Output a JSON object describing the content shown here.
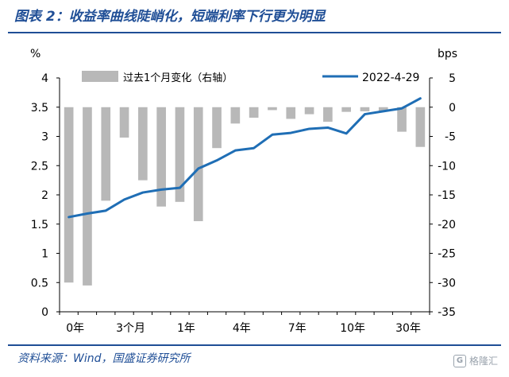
{
  "figure_title": "图表 2：收益率曲线陡峭化，短端利率下行更为明显",
  "source_note": "资料来源：Wind，国盛证券研究所",
  "watermark": "格隆汇",
  "watermark_badge": "G",
  "colors": {
    "bar": "#b8b8b8",
    "line": "#1f6eb5",
    "title": "#1f4e96"
  },
  "chart_data": {
    "type": "bar+line",
    "title": "",
    "ylabel_left": "%",
    "ylabel_right": "bps",
    "y_left_range": [
      0,
      4
    ],
    "y_left_ticks": [
      "0",
      "0.5",
      "1",
      "1.5",
      "2",
      "2.5",
      "3",
      "3.5",
      "4"
    ],
    "y_right_range": [
      -35,
      5
    ],
    "y_right_ticks": [
      "5",
      "0",
      "-5",
      "-10",
      "-15",
      "-20",
      "-25",
      "-30",
      "-35"
    ],
    "x_tick_labels": [
      "0年",
      "3个月",
      "1年",
      "4年",
      "7年",
      "10年",
      "30年"
    ],
    "x_tick_positions": [
      0,
      3,
      6,
      9,
      12,
      15,
      18
    ],
    "num_points": 20,
    "legend_placement": "top",
    "series": [
      {
        "name": "过去1个月变化（右轴）",
        "type": "bar",
        "axis": "right",
        "values": [
          -30,
          -30.5,
          -16,
          -5.2,
          -12.5,
          -17,
          -16.2,
          -19.5,
          -7,
          -2.8,
          -1.8,
          -0.5,
          -2,
          -1.2,
          -2.5,
          -0.8,
          -0.7,
          -0.7,
          -4.2,
          -6.8
        ]
      },
      {
        "name": "2022-4-29",
        "type": "line",
        "axis": "left",
        "values": [
          1.62,
          1.68,
          1.73,
          1.92,
          2.04,
          2.09,
          2.12,
          2.45,
          2.59,
          2.76,
          2.8,
          3.03,
          3.06,
          3.13,
          3.15,
          3.05,
          3.38,
          3.43,
          3.48,
          3.65
        ]
      }
    ]
  }
}
